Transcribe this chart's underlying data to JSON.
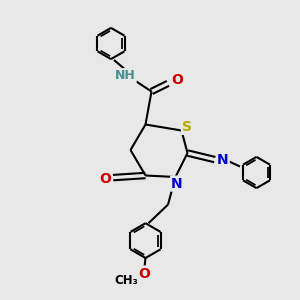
{
  "bg_color": "#e8e8e8",
  "atom_colors": {
    "C": "#000000",
    "N": "#0000cc",
    "NH": "#4a8f8f",
    "O": "#cc0000",
    "S": "#bbaa00",
    "H": "#4a9090"
  },
  "bond_color": "#000000",
  "bond_width": 1.5,
  "font_size_atom": 10
}
